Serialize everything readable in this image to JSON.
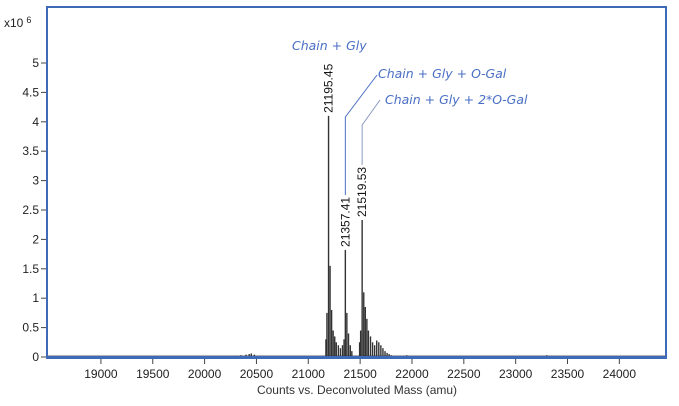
{
  "chart_data": {
    "type": "bar",
    "title": "",
    "xlabel": "Counts vs. Deconvoluted Mass (amu)",
    "ylabel": "",
    "y_multiplier_label": {
      "base": "x10",
      "exponent": "6"
    },
    "xlim": [
      18480,
      24450
    ],
    "ylim": [
      0,
      5.5
    ],
    "x_ticks": [
      "19000",
      "19500",
      "20000",
      "20500",
      "21000",
      "21500",
      "22000",
      "22500",
      "23000",
      "23500",
      "24000"
    ],
    "y_ticks": [
      "0",
      "0.5",
      "1",
      "1.5",
      "2",
      "2.5",
      "3",
      "3.5",
      "4",
      "4.5",
      "5"
    ],
    "grid": false,
    "colors": {
      "frame": "#3d6bb8",
      "peaks": "#333333",
      "annotation": "#4a6fc4"
    },
    "series": [
      {
        "x": [
          20300,
          20350,
          20400,
          20430,
          20450,
          20480,
          20500,
          21170,
          21180,
          21195.45,
          21210,
          21225,
          21240,
          21255,
          21270,
          21290,
          21310,
          21330,
          21345,
          21357.41,
          21372,
          21388,
          21405,
          21420,
          21495,
          21505,
          21519.53,
          21535,
          21550,
          21565,
          21580,
          21600,
          21620,
          21640,
          21660,
          21680,
          21700,
          21720,
          21740,
          21760,
          21780,
          21800,
          21950,
          22950,
          23300
        ],
        "y": [
          0.02,
          0.03,
          0.04,
          0.05,
          0.06,
          0.04,
          0.02,
          0.3,
          0.75,
          4.1,
          1.55,
          0.8,
          0.45,
          0.35,
          0.25,
          0.2,
          0.15,
          0.2,
          0.3,
          1.82,
          0.75,
          0.4,
          0.2,
          0.1,
          0.25,
          0.45,
          2.33,
          1.1,
          0.85,
          0.65,
          0.45,
          0.35,
          0.25,
          0.2,
          0.28,
          0.25,
          0.2,
          0.15,
          0.1,
          0.07,
          0.05,
          0.03,
          0.03,
          0.02,
          0.03
        ]
      }
    ],
    "peak_labels": [
      {
        "mass": 21195.45,
        "label": "21195.45",
        "height": 4.1,
        "annotation": "Chain + Gly"
      },
      {
        "mass": 21357.41,
        "label": "21357.41",
        "height": 1.82,
        "annotation": "Chain + Gly + O-Gal"
      },
      {
        "mass": 21519.53,
        "label": "21519.53",
        "height": 2.33,
        "annotation": "Chain + Gly + 2*O-Gal"
      }
    ]
  }
}
